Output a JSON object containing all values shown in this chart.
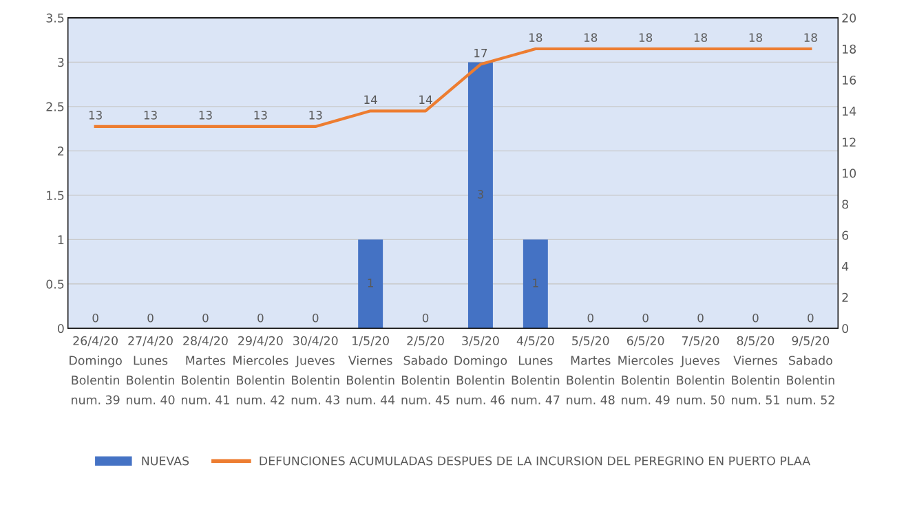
{
  "chart_data": {
    "type": "bar",
    "categories": [
      "26/4/20\nDomingo\nBolentin\nnum. 39",
      "27/4/20\nLunes\nBolentin\nnum. 40",
      "28/4/20\nMartes\nBolentin\nnum. 41",
      "29/4/20\nMiercoles\nBolentin\nnum. 42",
      "30/4/20\nJueves\nBolentin\nnum. 43",
      "1/5/20\nViernes\nBolentin\nnum. 44",
      "2/5/20\nSabado\nBolentin\nnum. 45",
      "3/5/20\nDomingo\nBolentin\nnum. 46",
      "4/5/20\nLunes\nBolentin\nnum. 47",
      "5/5/20\nMartes\nBolentin\nnum. 48",
      "6/5/20\nMiercoles\nBolentin\nnum. 49",
      "7/5/20\nJueves\nBolentin\nnum. 50",
      "8/5/20\nViernes\nBolentin\nnum. 51",
      "9/5/20\nSabado\nBolentin\nnum. 52"
    ],
    "series": [
      {
        "name": "NUEVAS",
        "color": "#4472c4",
        "values": [
          0,
          0,
          0,
          0,
          0,
          1,
          0,
          3,
          1,
          0,
          0,
          0,
          0,
          0
        ]
      },
      {
        "name": "DEFUNCIONES ACUMULADAS DESPUES DE LA INCURSION DEL PEREGRINO EN PUERTO PLAA",
        "type": "line",
        "axis": "y2",
        "color": "#ed7d31",
        "values": [
          13,
          13,
          13,
          13,
          13,
          14,
          14,
          17,
          18,
          18,
          18,
          18,
          18,
          18
        ]
      }
    ],
    "ylim": [
      0,
      3.5
    ],
    "yticks": [
      0,
      0.5,
      1,
      1.5,
      2,
      2.5,
      3,
      3.5
    ],
    "y2lim": [
      0,
      20
    ],
    "y2ticks": [
      0,
      2,
      4,
      6,
      8,
      10,
      12,
      14,
      16,
      18,
      20
    ],
    "grid": "y",
    "legend": "bottom",
    "data_labels": true,
    "line_style": "solid"
  }
}
